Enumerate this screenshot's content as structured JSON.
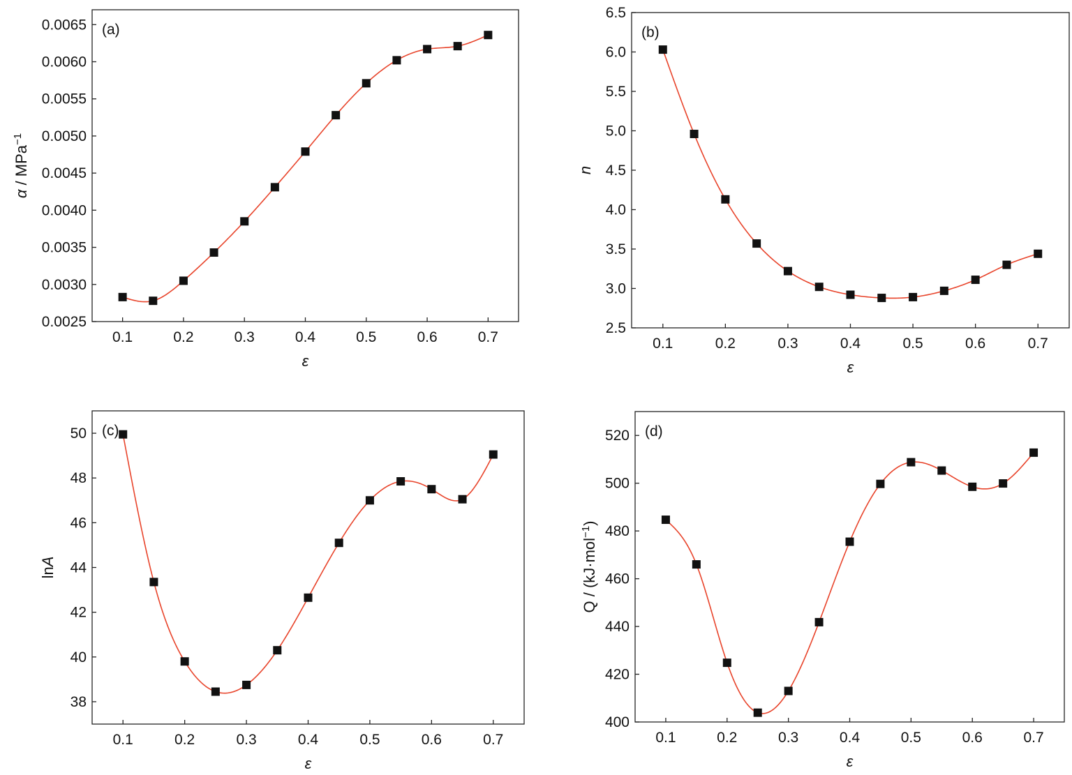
{
  "chart_data": [
    {
      "type": "scatter",
      "panel_label": "(a)",
      "xlabel": "ε",
      "ylabel_parts": [
        "α",
        " / MPa",
        "−1"
      ],
      "xlim": [
        0.05,
        0.75
      ],
      "ylim": [
        0.0025,
        0.0067
      ],
      "xticks": [
        "0.1",
        "0.2",
        "0.3",
        "0.4",
        "0.5",
        "0.6",
        "0.7"
      ],
      "yticks": [
        "0.0025",
        "0.0030",
        "0.0035",
        "0.0040",
        "0.0045",
        "0.0050",
        "0.0055",
        "0.0060",
        "0.0065"
      ],
      "x": [
        0.1,
        0.15,
        0.2,
        0.25,
        0.3,
        0.35,
        0.4,
        0.45,
        0.5,
        0.55,
        0.6,
        0.65,
        0.7
      ],
      "y": [
        0.00283,
        0.00278,
        0.00305,
        0.00343,
        0.00385,
        0.00431,
        0.00479,
        0.00528,
        0.00571,
        0.00602,
        0.00617,
        0.00621,
        0.00636
      ],
      "fit_curve": true,
      "marker": "square",
      "curve_color": "#e8432a"
    },
    {
      "type": "scatter",
      "panel_label": "(b)",
      "xlabel": "ε",
      "ylabel_parts": [
        "n"
      ],
      "xlim": [
        0.05,
        0.75
      ],
      "ylim": [
        2.5,
        6.5
      ],
      "xticks": [
        "0.1",
        "0.2",
        "0.3",
        "0.4",
        "0.5",
        "0.6",
        "0.7"
      ],
      "yticks": [
        "2.5",
        "3.0",
        "3.5",
        "4.0",
        "4.5",
        "5.0",
        "5.5",
        "6.0",
        "6.5"
      ],
      "x": [
        0.1,
        0.15,
        0.2,
        0.25,
        0.3,
        0.35,
        0.4,
        0.45,
        0.5,
        0.55,
        0.6,
        0.65,
        0.7
      ],
      "y": [
        6.03,
        4.96,
        4.13,
        3.57,
        3.22,
        3.02,
        2.92,
        2.88,
        2.89,
        2.97,
        3.11,
        3.3,
        3.44
      ],
      "fit_curve": true,
      "marker": "square",
      "curve_color": "#e8432a"
    },
    {
      "type": "scatter",
      "panel_label": "(c)",
      "xlabel": "ε",
      "ylabel_parts": [
        "ln",
        "A"
      ],
      "xlim": [
        0.05,
        0.75
      ],
      "ylim": [
        37,
        51
      ],
      "xticks": [
        "0.1",
        "0.2",
        "0.3",
        "0.4",
        "0.5",
        "0.6",
        "0.7"
      ],
      "yticks": [
        "38",
        "40",
        "42",
        "44",
        "46",
        "48",
        "50"
      ],
      "x": [
        0.1,
        0.15,
        0.2,
        0.25,
        0.3,
        0.35,
        0.4,
        0.45,
        0.5,
        0.55,
        0.6,
        0.65,
        0.7
      ],
      "y": [
        49.95,
        43.35,
        39.8,
        38.45,
        38.75,
        40.3,
        42.65,
        45.1,
        47.0,
        47.85,
        47.5,
        47.05,
        49.05
      ],
      "fit_curve": true,
      "marker": "square",
      "curve_color": "#e8432a"
    },
    {
      "type": "scatter",
      "panel_label": "(d)",
      "xlabel": "ε",
      "ylabel_parts": [
        "Q / (kJ·mol",
        "−1",
        ")"
      ],
      "xlim": [
        0.05,
        0.75
      ],
      "ylim": [
        400,
        530
      ],
      "xticks": [
        "0.1",
        "0.2",
        "0.3",
        "0.4",
        "0.5",
        "0.6",
        "0.7"
      ],
      "yticks": [
        "400",
        "420",
        "440",
        "460",
        "480",
        "500",
        "520"
      ],
      "x": [
        0.1,
        0.15,
        0.2,
        0.25,
        0.3,
        0.35,
        0.4,
        0.45,
        0.5,
        0.55,
        0.6,
        0.65,
        0.7
      ],
      "y": [
        484.7,
        466.0,
        424.8,
        403.9,
        413.0,
        441.8,
        475.5,
        499.7,
        508.8,
        505.3,
        498.5,
        499.9,
        512.8
      ],
      "fit_curve": true,
      "marker": "square",
      "curve_color": "#e8432a"
    }
  ]
}
